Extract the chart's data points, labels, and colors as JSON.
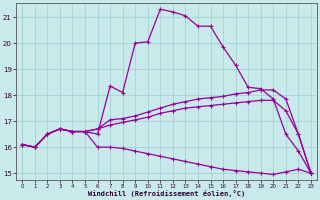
{
  "xlabel": "Windchill (Refroidissement éolien,°C)",
  "background_color": "#c8eaea",
  "grid_color": "#9ecece",
  "line_color": "#990099",
  "xlim": [
    -0.5,
    23.5
  ],
  "ylim": [
    14.75,
    21.55
  ],
  "yticks": [
    15,
    16,
    17,
    18,
    19,
    20,
    21
  ],
  "xticks": [
    0,
    1,
    2,
    3,
    4,
    5,
    6,
    7,
    8,
    9,
    10,
    11,
    12,
    13,
    14,
    15,
    16,
    17,
    18,
    19,
    20,
    21,
    22,
    23
  ],
  "line1_x": [
    0,
    1,
    2,
    3,
    4,
    5,
    6,
    7,
    8,
    9,
    10,
    11,
    12,
    13,
    14,
    15,
    16,
    17,
    18,
    19,
    20,
    21,
    22,
    23
  ],
  "line1_y": [
    16.1,
    16.0,
    16.5,
    16.7,
    16.6,
    16.6,
    16.5,
    18.35,
    18.1,
    20.0,
    20.05,
    21.3,
    21.2,
    21.05,
    20.65,
    20.65,
    19.85,
    19.15,
    18.3,
    18.25,
    17.85,
    16.5,
    15.85,
    15.0
  ],
  "line2_x": [
    0,
    1,
    2,
    3,
    4,
    5,
    6,
    7,
    8,
    9,
    10,
    11,
    12,
    13,
    14,
    15,
    16,
    17,
    18,
    19,
    20,
    21,
    22,
    23
  ],
  "line2_y": [
    16.1,
    16.0,
    16.5,
    16.7,
    16.6,
    16.6,
    16.7,
    17.05,
    17.1,
    17.2,
    17.35,
    17.5,
    17.65,
    17.75,
    17.85,
    17.9,
    17.95,
    18.05,
    18.1,
    18.2,
    18.2,
    17.85,
    16.5,
    15.0
  ],
  "line3_x": [
    0,
    1,
    2,
    3,
    4,
    5,
    6,
    7,
    8,
    9,
    10,
    11,
    12,
    13,
    14,
    15,
    16,
    17,
    18,
    19,
    20,
    21,
    22,
    23
  ],
  "line3_y": [
    16.1,
    16.0,
    16.5,
    16.7,
    16.6,
    16.6,
    16.7,
    16.85,
    16.95,
    17.05,
    17.15,
    17.3,
    17.4,
    17.5,
    17.55,
    17.6,
    17.65,
    17.7,
    17.75,
    17.8,
    17.8,
    17.4,
    16.5,
    15.0
  ],
  "line4_x": [
    0,
    1,
    2,
    3,
    4,
    5,
    6,
    7,
    8,
    9,
    10,
    11,
    12,
    13,
    14,
    15,
    16,
    17,
    18,
    19,
    20,
    21,
    22,
    23
  ],
  "line4_y": [
    16.1,
    16.0,
    16.5,
    16.7,
    16.6,
    16.6,
    16.0,
    16.0,
    15.95,
    15.85,
    15.75,
    15.65,
    15.55,
    15.45,
    15.35,
    15.25,
    15.15,
    15.1,
    15.05,
    15.0,
    14.95,
    15.05,
    15.15,
    15.0
  ]
}
